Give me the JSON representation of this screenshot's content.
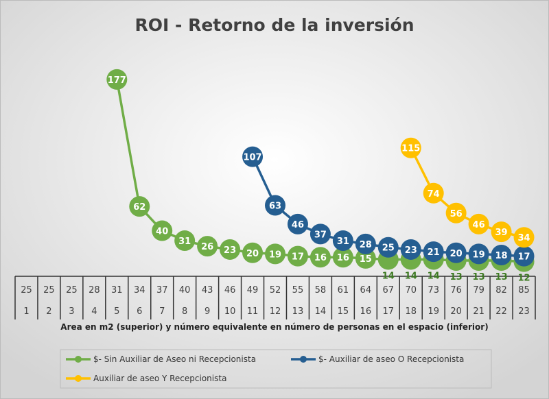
{
  "chart_data": {
    "type": "line",
    "title": "ROI - Retorno de la inversión",
    "xlabel": "Area en m2 (superior) y número equivalente en número  de personas en el espacio (inferior)",
    "ylabel": "",
    "categories_top": [
      "25",
      "25",
      "25",
      "28",
      "31",
      "34",
      "37",
      "40",
      "43",
      "46",
      "49",
      "52",
      "55",
      "58",
      "61",
      "64",
      "67",
      "70",
      "73",
      "76",
      "79",
      "82",
      "85"
    ],
    "categories_bottom": [
      "1",
      "2",
      "3",
      "4",
      "5",
      "6",
      "7",
      "8",
      "9",
      "10",
      "11",
      "12",
      "13",
      "14",
      "15",
      "16",
      "17",
      "18",
      "19",
      "20",
      "21",
      "22",
      "23"
    ],
    "ylim": [
      0,
      180
    ],
    "grid": false,
    "legend_position": "bottom",
    "series": [
      {
        "name": "$-  Sin Auxiliar de Aseo ni Recepcionista",
        "color": "#70AD47",
        "values": [
          null,
          null,
          null,
          null,
          177,
          62,
          40,
          31,
          26,
          23,
          20,
          19,
          17,
          16,
          16,
          15,
          14,
          14,
          14,
          13,
          13,
          13,
          12
        ]
      },
      {
        "name": "$-  Auxiliar de aseo O Recepcionista",
        "color": "#255E91",
        "values": [
          null,
          null,
          null,
          null,
          null,
          null,
          null,
          null,
          null,
          null,
          107,
          63,
          46,
          37,
          31,
          28,
          25,
          23,
          21,
          20,
          19,
          18,
          17
        ]
      },
      {
        "name": "Auxiliar de aseo Y Recepcionista",
        "color": "#FFC000",
        "values": [
          null,
          null,
          null,
          null,
          null,
          null,
          null,
          null,
          null,
          null,
          null,
          null,
          null,
          null,
          null,
          null,
          null,
          115,
          74,
          56,
          46,
          39,
          34
        ]
      }
    ]
  }
}
